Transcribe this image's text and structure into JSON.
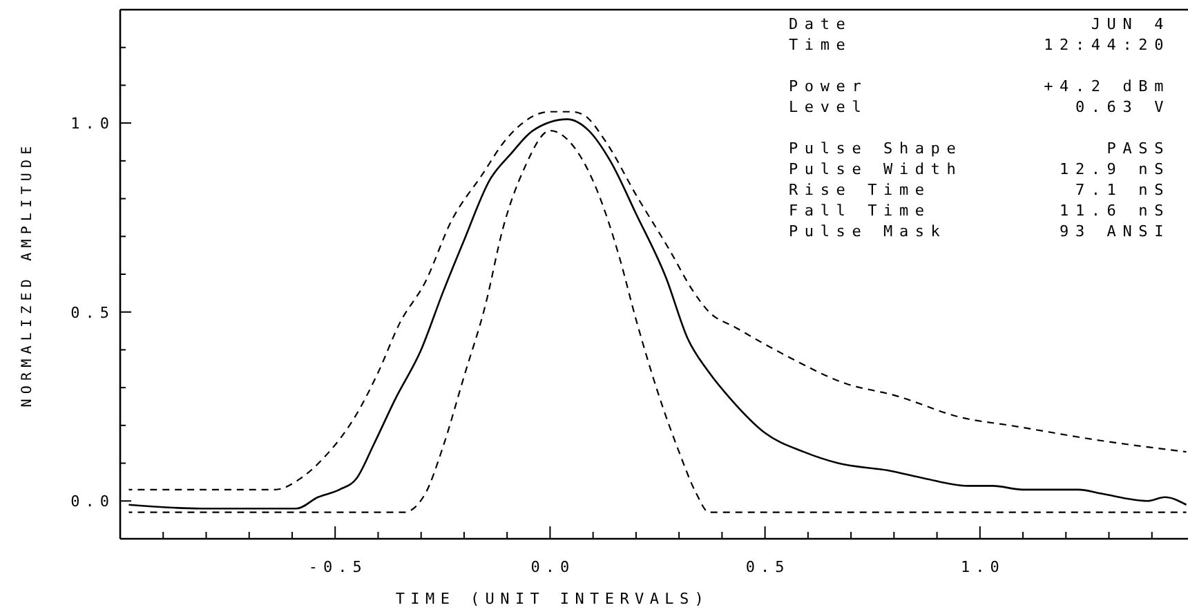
{
  "chart_data": {
    "type": "line",
    "xlabel": "TIME (UNIT INTERVALS)",
    "ylabel": "NORMALIZED AMPLITUDE",
    "xlim": [
      -1.0,
      1.5
    ],
    "ylim": [
      -0.1,
      1.3
    ],
    "xticks": [
      {
        "value": -0.9,
        "label": null
      },
      {
        "value": -0.8,
        "label": null
      },
      {
        "value": -0.7,
        "label": null
      },
      {
        "value": -0.6,
        "label": null
      },
      -0.5,
      {
        "value": -0.4,
        "label": null
      },
      {
        "value": -0.3,
        "label": null
      },
      {
        "value": -0.2,
        "label": null
      },
      {
        "value": -0.1,
        "label": null
      },
      {
        "value": 0,
        "label": "0.0"
      },
      {
        "value": 0.1,
        "label": null
      },
      {
        "value": 0.2,
        "label": null
      },
      {
        "value": 0.3,
        "label": null
      },
      {
        "value": 0.4,
        "label": null
      },
      0.5,
      {
        "value": 0.6,
        "label": null
      },
      {
        "value": 0.7,
        "label": null
      },
      {
        "value": 0.8,
        "label": null
      },
      {
        "value": 0.9,
        "label": null
      },
      {
        "value": 1,
        "label": "1.0"
      },
      {
        "value": 1.1,
        "label": null
      },
      {
        "value": 1.2,
        "label": null
      },
      {
        "value": 1.3,
        "label": null
      },
      {
        "value": 1.4,
        "label": null
      }
    ],
    "yticks": [
      {
        "value": 0,
        "label": "0.0"
      },
      {
        "value": 0.1,
        "label": null
      },
      {
        "value": 0.2,
        "label": null
      },
      {
        "value": 0.3,
        "label": null
      },
      {
        "value": 0.4,
        "label": null
      },
      0.5,
      {
        "value": 0.6,
        "label": null
      },
      {
        "value": 0.7,
        "label": null
      },
      {
        "value": 0.8,
        "label": null
      },
      {
        "value": 0.9,
        "label": null
      },
      {
        "value": 1,
        "label": "1.0"
      },
      {
        "value": 1.1,
        "label": null
      },
      {
        "value": 1.2,
        "label": null
      }
    ],
    "series": [
      {
        "color": "#000000",
        "line_style": "dashed",
        "x": [
          -0.98,
          -0.64,
          -0.58,
          -0.53,
          -0.45,
          -0.4,
          -0.35,
          -0.29,
          -0.23,
          -0.16,
          -0.1,
          0.0,
          0.05,
          0.08,
          0.13,
          0.2,
          0.28,
          0.33,
          0.37,
          0.43,
          0.54,
          0.69,
          0.8,
          0.96,
          1.07,
          1.28,
          1.48
        ],
        "values": [
          0.03,
          0.03,
          0.06,
          0.11,
          0.23,
          0.34,
          0.47,
          0.58,
          0.74,
          0.86,
          0.96,
          1.03,
          1.03,
          1.02,
          0.95,
          0.81,
          0.66,
          0.56,
          0.5,
          0.46,
          0.39,
          0.31,
          0.28,
          0.22,
          0.2,
          0.16,
          0.13
        ]
      },
      {
        "color": "#000000",
        "line_style": "solid",
        "x": [
          -0.98,
          -0.81,
          -0.65,
          -0.59,
          -0.54,
          -0.49,
          -0.45,
          -0.41,
          -0.36,
          -0.3,
          -0.25,
          -0.2,
          -0.14,
          -0.09,
          -0.04,
          0.04,
          0.09,
          0.14,
          0.2,
          0.27,
          0.32,
          0.37,
          0.42,
          0.5,
          0.59,
          0.67,
          0.79,
          0.87,
          0.97,
          1.03,
          1.1,
          1.23,
          1.28,
          1.39,
          1.43,
          1.48
        ],
        "values": [
          -0.01,
          -0.02,
          -0.02,
          -0.02,
          0.01,
          0.03,
          0.06,
          0.15,
          0.27,
          0.4,
          0.55,
          0.69,
          0.85,
          0.92,
          0.98,
          1.01,
          0.98,
          0.9,
          0.76,
          0.59,
          0.43,
          0.34,
          0.27,
          0.18,
          0.13,
          0.1,
          0.08,
          0.06,
          0.04,
          0.04,
          0.03,
          0.03,
          0.02,
          0.0,
          0.01,
          -0.01
        ]
      },
      {
        "color": "#000000",
        "line_style": "dashed",
        "x": [
          -0.98,
          -0.34,
          -0.29,
          -0.25,
          -0.2,
          -0.15,
          -0.11,
          -0.06,
          0.0,
          0.06,
          0.11,
          0.16,
          0.2,
          0.25,
          0.3,
          0.34,
          0.37,
          1.48
        ],
        "values": [
          -0.03,
          -0.03,
          0.02,
          0.14,
          0.33,
          0.52,
          0.72,
          0.88,
          0.98,
          0.93,
          0.82,
          0.65,
          0.48,
          0.29,
          0.13,
          0.02,
          -0.03,
          -0.03
        ]
      }
    ],
    "annotations": [
      "Date",
      "JUN 4",
      "Time",
      "12:44:20",
      "Power",
      "+4.2 dBm",
      "Level",
      "0.63 V",
      "Pulse Shape",
      "PASS",
      "Pulse Width",
      "12.9 nS",
      "Rise Time",
      "7.1 nS",
      "Fall Time",
      "11.6 nS",
      "Pulse Mask",
      "93 ANSI"
    ]
  }
}
